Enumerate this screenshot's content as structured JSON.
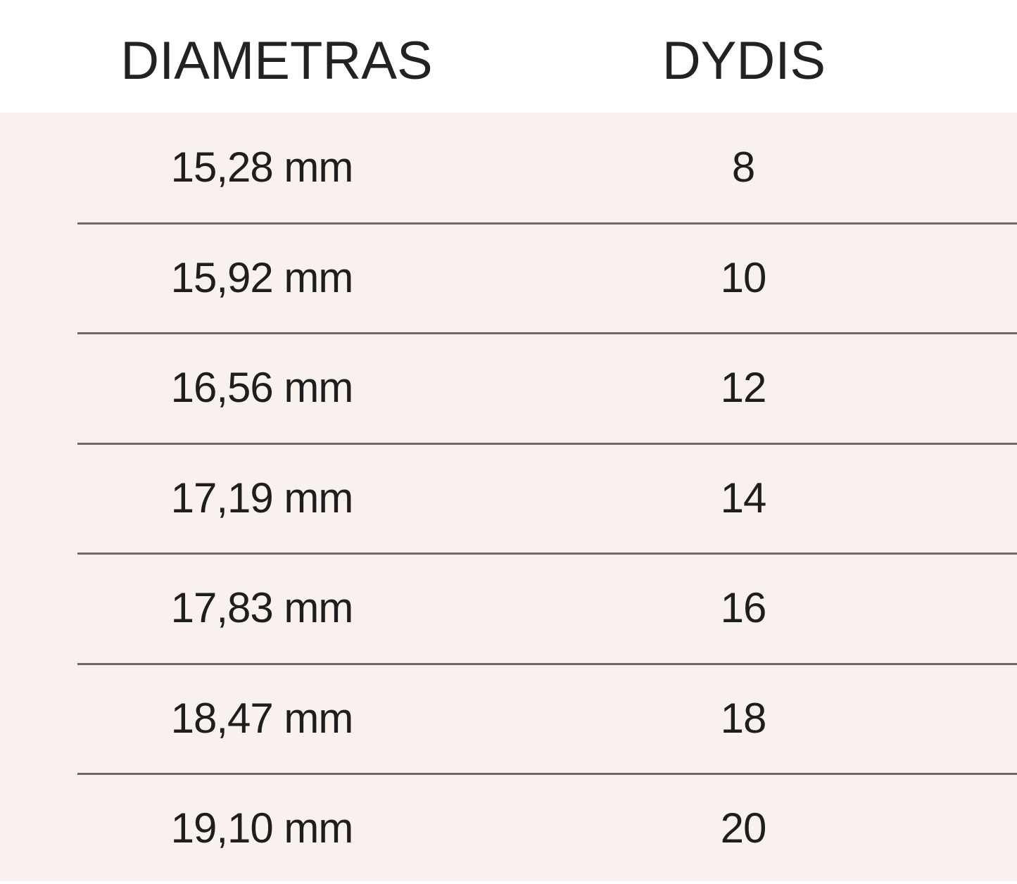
{
  "table": {
    "headers": [
      "DIAMETRAS",
      "DYDIS"
    ],
    "rows": [
      {
        "diameter": "15,28 mm",
        "size": "8"
      },
      {
        "diameter": "15,92 mm",
        "size": "10"
      },
      {
        "diameter": "16,56 mm",
        "size": "12"
      },
      {
        "diameter": "17,19 mm",
        "size": "14"
      },
      {
        "diameter": "17,83 mm",
        "size": "16"
      },
      {
        "diameter": "18,47 mm",
        "size": "18"
      },
      {
        "diameter": "19,10 mm",
        "size": "20"
      }
    ]
  },
  "colors": {
    "body_background": "#f9f1ee",
    "divider": "#6e6a69",
    "text": "#222222"
  }
}
